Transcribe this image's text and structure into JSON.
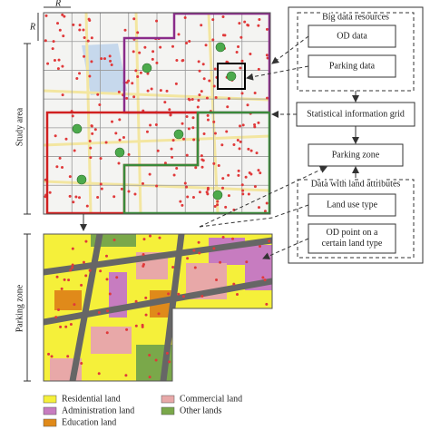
{
  "grid": {
    "cell_label_x": "R",
    "cell_label_y": "R"
  },
  "side_labels": {
    "study_area": "Study area",
    "parking_zone": "Parking zone"
  },
  "panel": {
    "big_data": {
      "title": "Big data resources",
      "items": [
        "OD data",
        "Parking data"
      ]
    },
    "statistical_grid": "Statistical information grid",
    "parking_zone": "Parking zone",
    "land_attributes": {
      "title": "Data with land attributes",
      "items": [
        "Land use type",
        "OD point on a certain land type"
      ]
    }
  },
  "legend": [
    {
      "label": "Residential land",
      "color": "#f5f03a"
    },
    {
      "label": "Commercial land",
      "color": "#e8a8a8"
    },
    {
      "label": "Administration land",
      "color": "#c77cc0"
    },
    {
      "label": "Other lands",
      "color": "#7aa84a"
    },
    {
      "label": "Education land",
      "color": "#e08a1a"
    }
  ]
}
